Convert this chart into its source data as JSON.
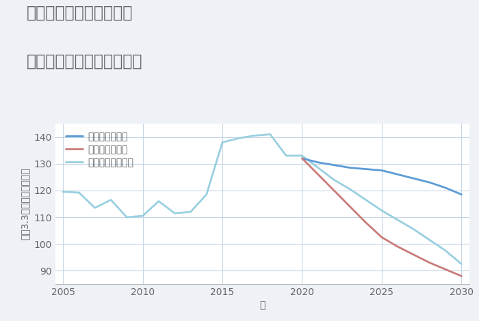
{
  "title_line1": "愛知県稲沢市陸田宮前の",
  "title_line2": "中古マンションの価格推移",
  "xlabel": "年",
  "ylabel": "坪（3.3㎡）単価（万円）",
  "background_color": "#eef2f7",
  "plot_bg_color": "#ffffff",
  "grid_color": "#c5d5e5",
  "title_color": "#666666",
  "good_color": "#5b9bd5",
  "bad_color": "#c97b78",
  "normal_color": "#99cfe0",
  "legend_good": "グッドシナリオ",
  "legend_bad": "バッドシナリオ",
  "legend_normal": "ノーマルシナリオ",
  "years_historical": [
    2005,
    2006,
    2007,
    2008,
    2009,
    2010,
    2011,
    2012,
    2013,
    2014,
    2015,
    2016,
    2017,
    2018,
    2019,
    2020
  ],
  "values_historical": [
    119.5,
    119.2,
    113.5,
    116.5,
    110.0,
    110.5,
    116.0,
    111.5,
    112.0,
    118.5,
    138.0,
    139.5,
    140.5,
    141.0,
    133.0,
    133.0
  ],
  "years_good": [
    2020,
    2021,
    2022,
    2023,
    2024,
    2025,
    2026,
    2027,
    2028,
    2029,
    2030
  ],
  "values_good": [
    132.0,
    130.5,
    129.5,
    128.5,
    128.0,
    127.5,
    126.0,
    124.5,
    123.0,
    121.0,
    118.5
  ],
  "years_bad": [
    2020,
    2021,
    2022,
    2023,
    2024,
    2025,
    2026,
    2027,
    2028,
    2029,
    2030
  ],
  "values_bad": [
    132.0,
    126.0,
    120.0,
    114.0,
    108.0,
    102.5,
    99.0,
    96.0,
    93.0,
    90.5,
    88.0
  ],
  "years_normal": [
    2020,
    2021,
    2022,
    2023,
    2024,
    2025,
    2026,
    2027,
    2028,
    2029,
    2030
  ],
  "values_normal": [
    133.0,
    128.5,
    124.0,
    120.5,
    116.5,
    112.5,
    109.0,
    105.5,
    101.5,
    97.5,
    92.5
  ],
  "ylim": [
    85,
    145
  ],
  "xlim": [
    2004.5,
    2030.5
  ],
  "yticks": [
    90,
    100,
    110,
    120,
    130,
    140
  ],
  "xticks": [
    2005,
    2010,
    2015,
    2020,
    2025,
    2030
  ],
  "line_width": 2.0,
  "title_fontsize": 17,
  "label_fontsize": 10,
  "tick_fontsize": 10,
  "legend_fontsize": 10
}
